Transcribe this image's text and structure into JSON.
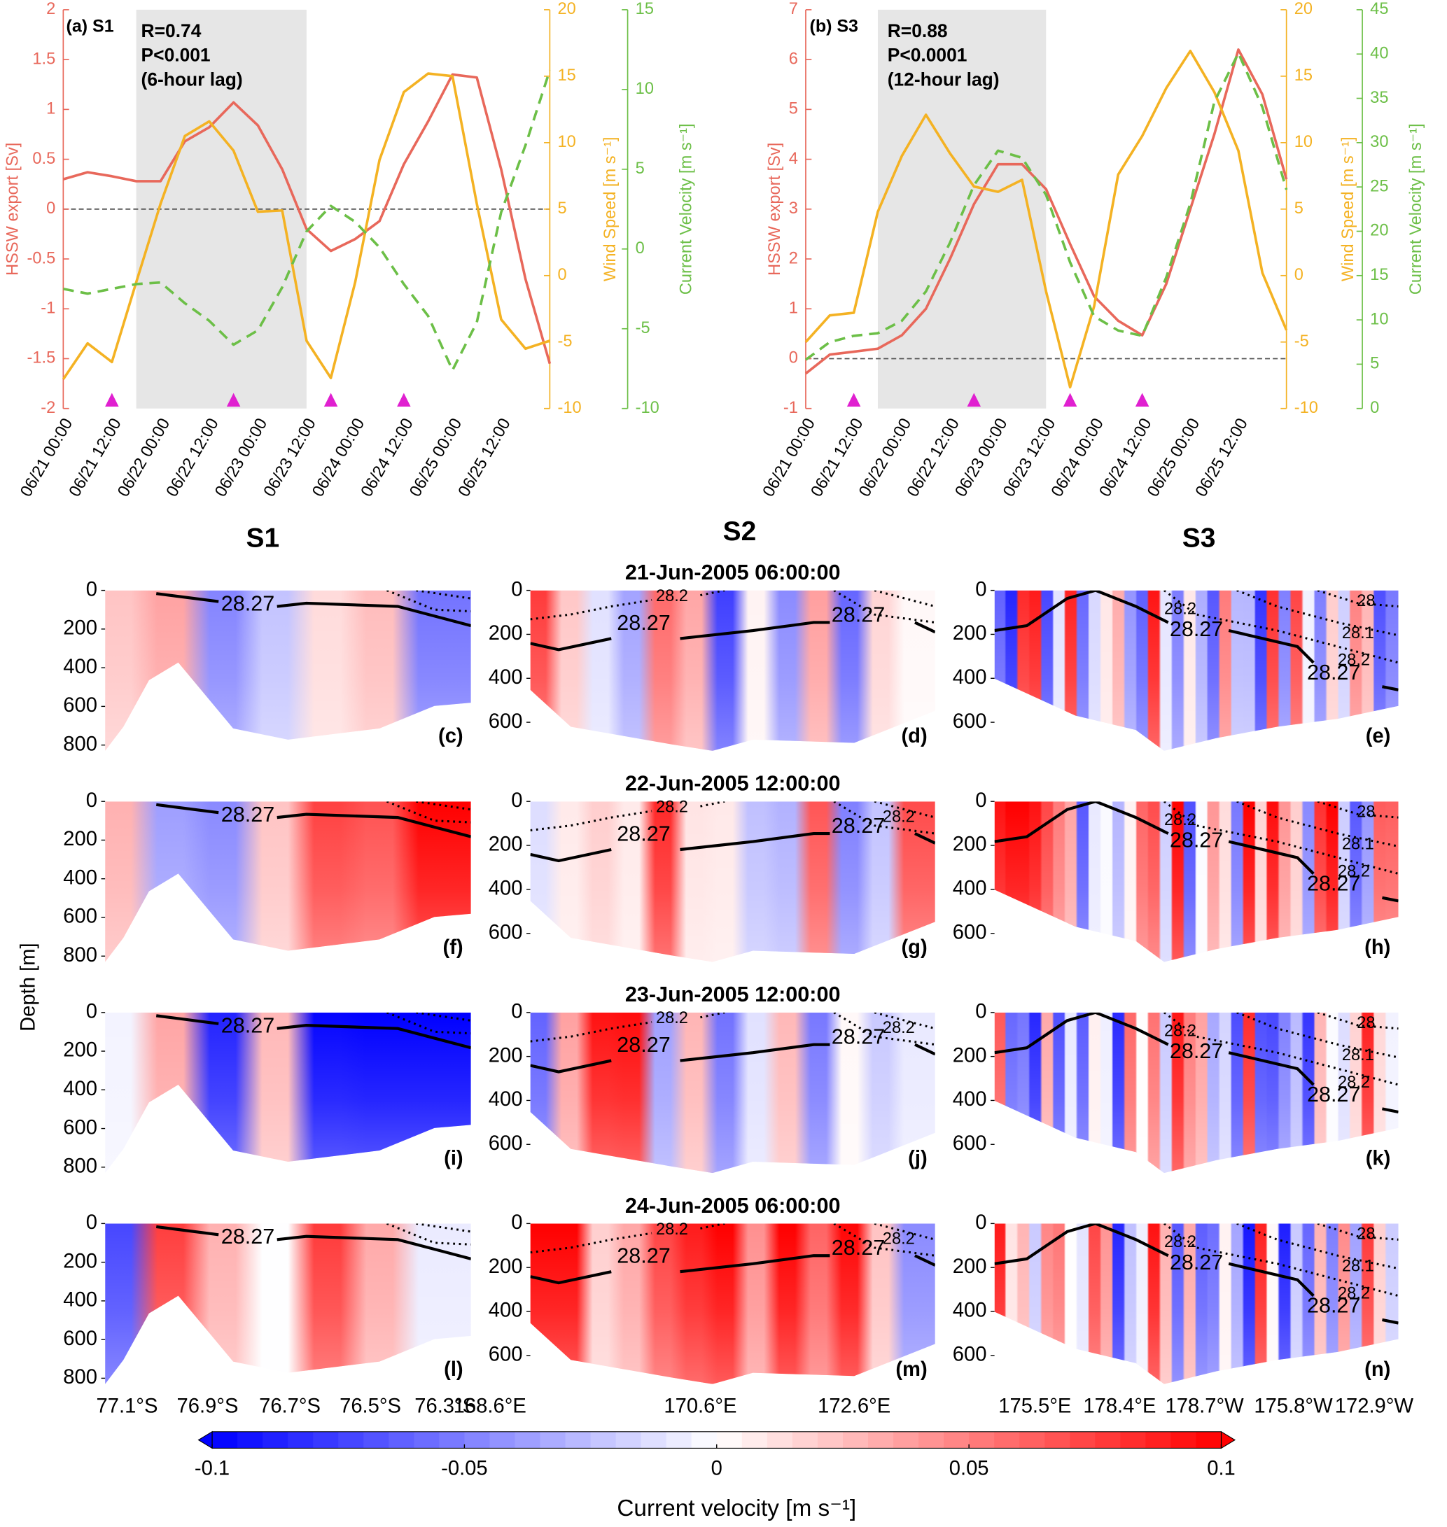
{
  "chart_data": [
    {
      "type": "line",
      "title": "(a) S1",
      "annotations": [
        "R=0.74",
        "P<0.001",
        "(6-hour lag)"
      ],
      "x": [
        "06/21 00:00",
        null,
        "06/21 12:00",
        null,
        "06/22 00:00",
        null,
        "06/22 12:00",
        null,
        "06/23 00:00",
        null,
        "06/23 12:00",
        null,
        "06/24 00:00",
        null,
        "06/24 12:00",
        null,
        "06/25 00:00",
        null,
        "06/25 12:00",
        null,
        null
      ],
      "ylabel": "HSSW export [Sv]",
      "y2label": "Wind Speed [m s⁻¹]",
      "y3label": "Current Velocity [m s⁻¹]",
      "ylim": [
        -2,
        2
      ],
      "yticks": [
        -2,
        -1.5,
        -1,
        -0.5,
        0,
        0.5,
        1,
        1.5,
        2
      ],
      "y2lim": [
        -10,
        20
      ],
      "y2ticks": [
        -10,
        -5,
        0,
        5,
        10,
        15,
        20
      ],
      "y3lim": [
        -10,
        15
      ],
      "y3ticks": [
        -10,
        -5,
        0,
        5,
        10,
        15
      ],
      "reference_line": 0,
      "shaded_span": [
        3,
        10
      ],
      "markers": [
        2,
        7,
        11,
        14
      ],
      "marker_color": "#e020d0",
      "series": [
        {
          "axis": "y",
          "color": "#e8685b",
          "dashed": false,
          "values": [
            0.3,
            0.37,
            0.33,
            0.28,
            0.28,
            0.68,
            0.82,
            1.07,
            0.84,
            0.4,
            -0.2,
            -0.42,
            -0.3,
            -0.12,
            0.45,
            0.88,
            1.35,
            1.32,
            0.4,
            -0.7,
            -1.55
          ]
        },
        {
          "axis": "y2",
          "color": "#f4b223",
          "dashed": false,
          "values": [
            -7.8,
            -5.1,
            -6.5,
            -0.5,
            5.4,
            10.5,
            11.6,
            9.4,
            4.8,
            4.9,
            -4.9,
            -7.7,
            -0.5,
            8.7,
            13.8,
            15.2,
            15.0,
            5.4,
            -3.3,
            -5.5,
            -4.9
          ]
        },
        {
          "axis": "y3",
          "color": "#6cbf47",
          "dashed": true,
          "values": [
            -2.5,
            -2.8,
            -2.5,
            -2.2,
            -2.1,
            -3.4,
            -4.5,
            -6.0,
            -5.1,
            -2.4,
            1.1,
            2.7,
            1.7,
            0.1,
            -2.2,
            -4.2,
            -7.6,
            -4.6,
            2.3,
            6.5,
            11.2
          ]
        }
      ]
    },
    {
      "type": "line",
      "title": "(b) S3",
      "annotations": [
        "R=0.88",
        "P<0.0001",
        "(12-hour lag)"
      ],
      "x": [
        "06/21 00:00",
        null,
        "06/21 12:00",
        null,
        "06/22 00:00",
        null,
        "06/22 12:00",
        null,
        "06/23 00:00",
        null,
        "06/23 12:00",
        null,
        "06/24 00:00",
        null,
        "06/24 12:00",
        null,
        "06/25 00:00",
        null,
        "06/25 12:00",
        null,
        null
      ],
      "ylabel": "HSSW export [Sv]",
      "y2label": "Wind Speed [m s⁻¹]",
      "y3label": "Current Velocity [m s⁻¹]",
      "ylim": [
        -1,
        7
      ],
      "yticks": [
        -1,
        0,
        1,
        2,
        3,
        4,
        5,
        6,
        7
      ],
      "y2lim": [
        -10,
        20
      ],
      "y2ticks": [
        -10,
        -5,
        0,
        5,
        10,
        15,
        20
      ],
      "y3lim": [
        0,
        45
      ],
      "y3ticks": [
        0,
        5,
        10,
        15,
        20,
        25,
        30,
        35,
        40,
        45
      ],
      "reference_line": 0,
      "shaded_span": [
        3,
        10
      ],
      "markers": [
        2,
        7,
        11,
        14
      ],
      "marker_color": "#e020d0",
      "series": [
        {
          "axis": "y",
          "color": "#e8685b",
          "dashed": false,
          "values": [
            -0.3,
            0.08,
            0.14,
            0.2,
            0.47,
            1.0,
            2.0,
            3.1,
            3.9,
            3.9,
            3.4,
            2.3,
            1.25,
            0.76,
            0.47,
            1.5,
            3.0,
            4.5,
            6.2,
            5.3,
            3.6
          ]
        },
        {
          "axis": "y2",
          "color": "#f4b223",
          "dashed": false,
          "values": [
            -5.0,
            -3.0,
            -2.8,
            4.8,
            9.0,
            12.1,
            9.2,
            6.7,
            6.3,
            7.2,
            -1.2,
            -8.4,
            -2.3,
            7.6,
            10.5,
            14.1,
            16.9,
            13.8,
            9.4,
            0.2,
            -4.1
          ]
        },
        {
          "axis": "y3",
          "color": "#6cbf47",
          "dashed": true,
          "values": [
            5.5,
            7.5,
            8.2,
            8.5,
            9.9,
            13.2,
            18.7,
            25.2,
            29.1,
            28.3,
            24.1,
            16.5,
            10.4,
            8.8,
            8.2,
            14.8,
            23.1,
            34.6,
            40.1,
            34.0,
            24.7
          ]
        }
      ]
    },
    {
      "type": "section",
      "ylabel": "Depth [m]",
      "columns": [
        {
          "title": "S1",
          "ylim": [
            0,
            830
          ],
          "yticks": [
            0,
            200,
            400,
            600,
            800
          ],
          "xticklabels": [
            "77.1°S",
            "76.9°S",
            "76.7°S",
            "76.5°S",
            "76.3°S"
          ]
        },
        {
          "title": "S2",
          "ylim": [
            0,
            730
          ],
          "yticks": [
            0,
            200,
            400,
            600
          ],
          "xticklabels": [
            "168.6°E",
            "170.6°E",
            "172.6°E"
          ]
        },
        {
          "title": "S3",
          "ylim": [
            0,
            730
          ],
          "yticks": [
            0,
            200,
            400,
            600
          ],
          "xticklabels": [
            "175.5°E",
            "178.4°E",
            "178.7°W",
            "175.8°W",
            "172.9°W"
          ]
        }
      ],
      "rows": [
        {
          "title": "21-Jun-2005 06:00:00",
          "panels": [
            {
              "label": "(c)",
              "contour_labels": [
                "28.27"
              ]
            },
            {
              "label": "(d)",
              "contour_labels": [
                "28.2",
                "28.27",
                "28.27"
              ]
            },
            {
              "label": "(e)",
              "contour_labels": [
                "28.2",
                "28.27",
                "28",
                "28.1",
                "28.2",
                "28.27"
              ]
            }
          ]
        },
        {
          "title": "22-Jun-2005 12:00:00",
          "panels": [
            {
              "label": "(f)",
              "contour_labels": [
                "28.27"
              ]
            },
            {
              "label": "(g)",
              "contour_labels": [
                "28.2",
                "28.27",
                "28.27",
                "28.2"
              ]
            },
            {
              "label": "(h)",
              "contour_labels": [
                "28.2",
                "28.27",
                "28",
                "28.1",
                "28.2",
                "28.27"
              ]
            }
          ]
        },
        {
          "title": "23-Jun-2005 12:00:00",
          "panels": [
            {
              "label": "(i)",
              "contour_labels": [
                "28.27"
              ]
            },
            {
              "label": "(j)",
              "contour_labels": [
                "28.2",
                "28.27",
                "28.27",
                "28.2"
              ]
            },
            {
              "label": "(k)",
              "contour_labels": [
                "28.2",
                "28.27",
                "28",
                "28.1",
                "28.2",
                "28.27"
              ]
            }
          ]
        },
        {
          "title": "24-Jun-2005 06:00:00",
          "panels": [
            {
              "label": "(l)",
              "contour_labels": [
                "28.27"
              ]
            },
            {
              "label": "(m)",
              "contour_labels": [
                "28.2",
                "28.27",
                "28.27",
                "28.2"
              ]
            },
            {
              "label": "(n)",
              "contour_labels": [
                "28.2",
                "28.27",
                "28",
                "28.1",
                "28.2",
                "28.27"
              ]
            }
          ]
        }
      ],
      "colorbar": {
        "lim": [
          -0.1,
          0.1
        ],
        "ticks": [
          -0.1,
          -0.05,
          0,
          0.05,
          0.1
        ],
        "label": "Current velocity [m s⁻¹]"
      }
    }
  ]
}
